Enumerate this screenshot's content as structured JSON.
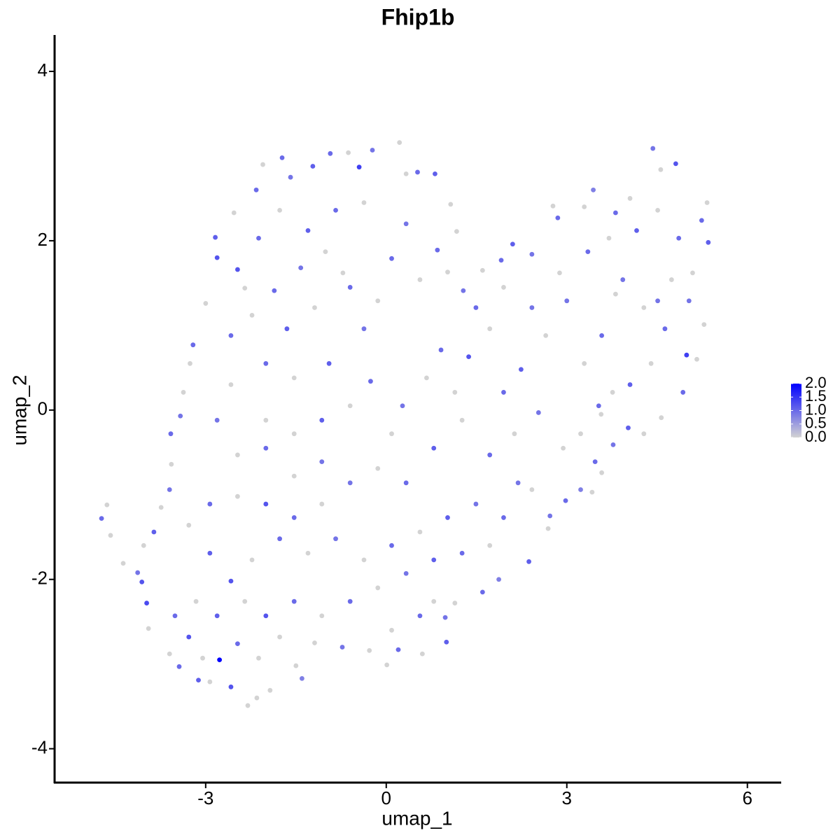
{
  "chart_data": {
    "type": "scatter",
    "title": "Fhip1b",
    "x_label": "umap_1",
    "y_label": "umap_2",
    "xlim": [
      -5.51,
      6.55
    ],
    "ylim": [
      -4.4,
      4.43
    ],
    "xticks": [
      -3,
      0,
      3,
      6
    ],
    "yticks": [
      -4,
      -2,
      0,
      2,
      4
    ],
    "color_scale": [
      "#d3d3d3",
      "#0000ff"
    ],
    "clim": [
      0,
      2
    ],
    "color_ticks": [
      {
        "value": 0,
        "label": "0.0"
      },
      {
        "value": 0.5,
        "label": "0.5"
      },
      {
        "value": 1,
        "label": "1.0"
      },
      {
        "value": 1.5,
        "label": "1.5"
      },
      {
        "value": 2,
        "label": "2.0"
      }
    ],
    "legend_position": "right",
    "x": [
      -4.73,
      -4.64,
      -4.58,
      -4.37,
      -4.13,
      -4.06,
      -3.98,
      -3.95,
      -3.6,
      -3.44,
      -3.12,
      -2.93,
      -2.77,
      -2.58,
      -2.3,
      -2.15,
      -1.93,
      -1.4,
      -1.5,
      -1.19,
      -0.73,
      -0.28,
      0.01,
      0.2,
      0.6,
      1.0,
      0.98,
      1.14,
      1.6,
      1.87,
      2.37,
      2.69,
      2.72,
      2.98,
      3.23,
      3.42,
      3.58,
      3.47,
      3.77,
      4.02,
      4.28,
      4.57,
      4.93,
      4.99,
      5.16,
      5.28,
      5.03,
      5.09,
      5.35,
      5.24,
      5.33,
      4.81,
      4.43,
      4.56,
      4.05,
      3.81,
      3.44,
      3.29,
      2.85,
      2.77,
      2.42,
      2.1,
      1.91,
      1.6,
      1.28,
      1.02,
      0.85,
      1.17,
      1.07,
      0.81,
      0.52,
      0.33,
      0.22,
      -0.23,
      -0.45,
      -0.63,
      -0.93,
      -1.22,
      -1.59,
      -1.73,
      -2.05,
      -2.16,
      -2.53,
      -2.84,
      -2.81,
      -3.0,
      -3.21,
      -3.26,
      -3.37,
      -3.42,
      -3.58,
      -3.57,
      -3.6,
      -3.74,
      -3.86,
      -4.03,
      -2.47,
      -2.35,
      -1.86,
      -1.42,
      -1.01,
      -0.6,
      -0.14,
      -0.37,
      -0.95,
      -1.53,
      -2.0,
      -2.58,
      -2.81,
      -2.47,
      -2.0,
      -1.53,
      -1.07,
      -0.6,
      -0.26,
      0.27,
      0.67,
      0.91,
      1.37,
      1.72,
      2.24,
      2.65,
      3.0,
      3.29,
      3.58,
      3.93,
      4.28,
      4.63,
      4.4,
      4.05,
      3.76,
      3.53,
      3.57,
      3.23,
      2.94,
      2.53,
      2.13,
      1.72,
      1.26,
      0.79,
      0.33,
      -0.14,
      -0.6,
      -1.07,
      -1.53,
      -2.0,
      -2.47,
      -2.93,
      -3.28,
      -2.93,
      -2.58,
      -2.23,
      -1.77,
      -1.3,
      -0.84,
      -0.37,
      0.09,
      0.56,
      1.02,
      1.49,
      1.95,
      2.42,
      2.19,
      1.72,
      1.26,
      0.79,
      0.33,
      -0.14,
      -0.6,
      -1.07,
      -1.53,
      -2.0,
      -2.35,
      -2.81,
      -3.16,
      -3.51,
      -3.28,
      -3.05,
      -2.47,
      -2.12,
      -1.77,
      0.56,
      0.09,
      0.79,
      -1.07,
      -1.53,
      -2.0,
      -2.58,
      -2.23,
      -1.65,
      -1.19,
      -0.72,
      0.09,
      0.56,
      0.33,
      -0.37,
      -0.84,
      -1.3,
      -1.77,
      -2.12,
      1.49,
      1.95,
      2.42,
      2.88,
      3.35,
      3.7,
      4.16,
      4.51,
      4.86,
      4.74,
      4.51,
      3.81,
      1.14,
      1.95,
      0.09
    ],
    "y": [
      -1.28,
      -1.12,
      -1.48,
      -1.81,
      -1.92,
      -2.03,
      -2.28,
      -2.58,
      -2.88,
      -3.03,
      -3.19,
      -3.21,
      -2.95,
      -3.27,
      -3.49,
      -3.4,
      -3.31,
      -3.17,
      -3.02,
      -2.75,
      -2.8,
      -2.84,
      -3.01,
      -2.83,
      -2.88,
      -2.74,
      -2.45,
      -2.28,
      -2.15,
      -2.0,
      -1.79,
      -1.4,
      -1.25,
      -1.07,
      -0.94,
      -0.97,
      -0.74,
      -0.61,
      -0.41,
      -0.21,
      -0.28,
      -0.09,
      0.21,
      0.65,
      0.6,
      1.01,
      1.29,
      1.62,
      1.98,
      2.24,
      2.45,
      2.91,
      3.09,
      2.84,
      2.5,
      2.33,
      2.6,
      2.4,
      2.27,
      2.41,
      1.84,
      1.96,
      1.77,
      1.65,
      1.41,
      1.63,
      1.89,
      2.11,
      2.43,
      2.79,
      2.81,
      2.79,
      3.16,
      3.07,
      2.87,
      3.04,
      3.03,
      2.88,
      2.75,
      2.98,
      2.9,
      2.6,
      2.33,
      2.04,
      1.8,
      1.26,
      0.77,
      0.55,
      0.21,
      -0.07,
      -0.28,
      -0.64,
      -0.94,
      -1.15,
      -1.44,
      -1.6,
      1.66,
      1.44,
      1.41,
      1.68,
      1.87,
      1.45,
      1.29,
      0.96,
      0.55,
      0.38,
      0.55,
      0.3,
      -0.12,
      -0.53,
      -0.45,
      -0.28,
      -0.12,
      0.05,
      0.34,
      0.05,
      0.38,
      0.71,
      0.63,
      0.96,
      0.48,
      0.88,
      1.29,
      0.55,
      0.88,
      1.54,
      1.21,
      0.96,
      0.55,
      0.3,
      0.21,
      0.05,
      -0.05,
      -0.28,
      -0.45,
      -0.03,
      -0.28,
      -0.53,
      -0.12,
      -0.45,
      -0.86,
      -0.69,
      -0.86,
      -1.11,
      -1.27,
      -1.11,
      -1.02,
      -1.11,
      -1.36,
      -1.69,
      -2.02,
      -1.77,
      -1.52,
      -1.69,
      -1.52,
      -1.77,
      -1.6,
      -1.44,
      -1.27,
      -1.11,
      -1.27,
      -0.94,
      -0.86,
      -1.6,
      -1.69,
      -1.77,
      -1.93,
      -2.1,
      -2.26,
      -2.43,
      -2.26,
      -2.43,
      -2.26,
      -2.43,
      -2.26,
      -2.43,
      -2.68,
      -2.93,
      -2.76,
      -2.93,
      -2.68,
      -2.43,
      -2.6,
      -2.26,
      -0.61,
      -0.78,
      -0.12,
      0.88,
      1.12,
      0.96,
      1.21,
      1.62,
      1.79,
      1.54,
      2.2,
      2.45,
      2.36,
      2.12,
      2.36,
      2.03,
      1.21,
      1.45,
      1.21,
      1.62,
      1.87,
      2.03,
      2.12,
      2.36,
      2.03,
      1.54,
      1.29,
      1.37,
      0.21,
      0.21,
      -0.28
    ],
    "values": [
      1.0,
      0,
      0,
      0,
      0.9,
      1.2,
      1.3,
      0,
      0,
      1.0,
      1.1,
      0,
      2.0,
      1.2,
      0,
      0,
      0,
      0.8,
      0,
      0,
      0.9,
      0,
      0,
      1.0,
      0,
      1.1,
      0.9,
      0,
      1.0,
      0.8,
      1.1,
      0,
      0.9,
      1.0,
      0.8,
      0,
      0,
      1.0,
      0.9,
      1.1,
      0,
      0,
      1.0,
      1.4,
      0,
      0,
      0.9,
      0,
      1.1,
      1.0,
      0,
      1.2,
      0.9,
      0,
      0,
      1.0,
      0.8,
      0,
      1.0,
      0,
      0.9,
      1.1,
      1.0,
      0,
      0.9,
      0,
      1.0,
      0,
      0,
      1.1,
      1.0,
      0,
      0,
      0.9,
      1.4,
      0,
      1.0,
      1.1,
      0.9,
      1.0,
      0,
      1.0,
      0,
      1.1,
      1.2,
      0,
      1.0,
      0,
      0,
      0.9,
      1.0,
      0,
      0.9,
      0,
      1.1,
      0,
      1.2,
      0,
      1.0,
      0.9,
      0,
      1.0,
      0,
      0.9,
      1.1,
      0,
      1.0,
      0,
      0.9,
      0,
      1.0,
      0,
      1.1,
      0,
      1.0,
      0.9,
      0,
      1.0,
      1.2,
      0,
      1.1,
      0,
      0.9,
      0,
      1.0,
      0.9,
      0,
      1.0,
      0,
      1.1,
      0,
      1.0,
      0,
      0,
      0,
      0.9,
      0,
      1.0,
      0,
      1.1,
      1.0,
      0,
      0.9,
      0,
      1.0,
      1.2,
      0,
      1.0,
      0,
      1.1,
      1.2,
      0,
      1.0,
      0,
      0.9,
      0,
      1.0,
      0,
      1.1,
      0.9,
      1.0,
      0,
      0.9,
      0,
      1.0,
      1.1,
      0.9,
      0,
      1.0,
      0,
      1.0,
      1.2,
      0,
      1.1,
      0,
      1.0,
      1.2,
      0,
      1.0,
      0,
      0,
      1.0,
      0,
      0,
      0.9,
      0,
      0,
      1.0,
      0,
      1.1,
      0,
      0,
      1.0,
      0,
      0.9,
      0,
      1.0,
      1.1,
      0,
      1.0,
      1.0,
      0,
      0.9,
      0,
      1.0,
      0,
      1.1,
      0,
      1.0,
      0,
      0.9,
      0,
      0,
      1.0,
      0
    ]
  }
}
